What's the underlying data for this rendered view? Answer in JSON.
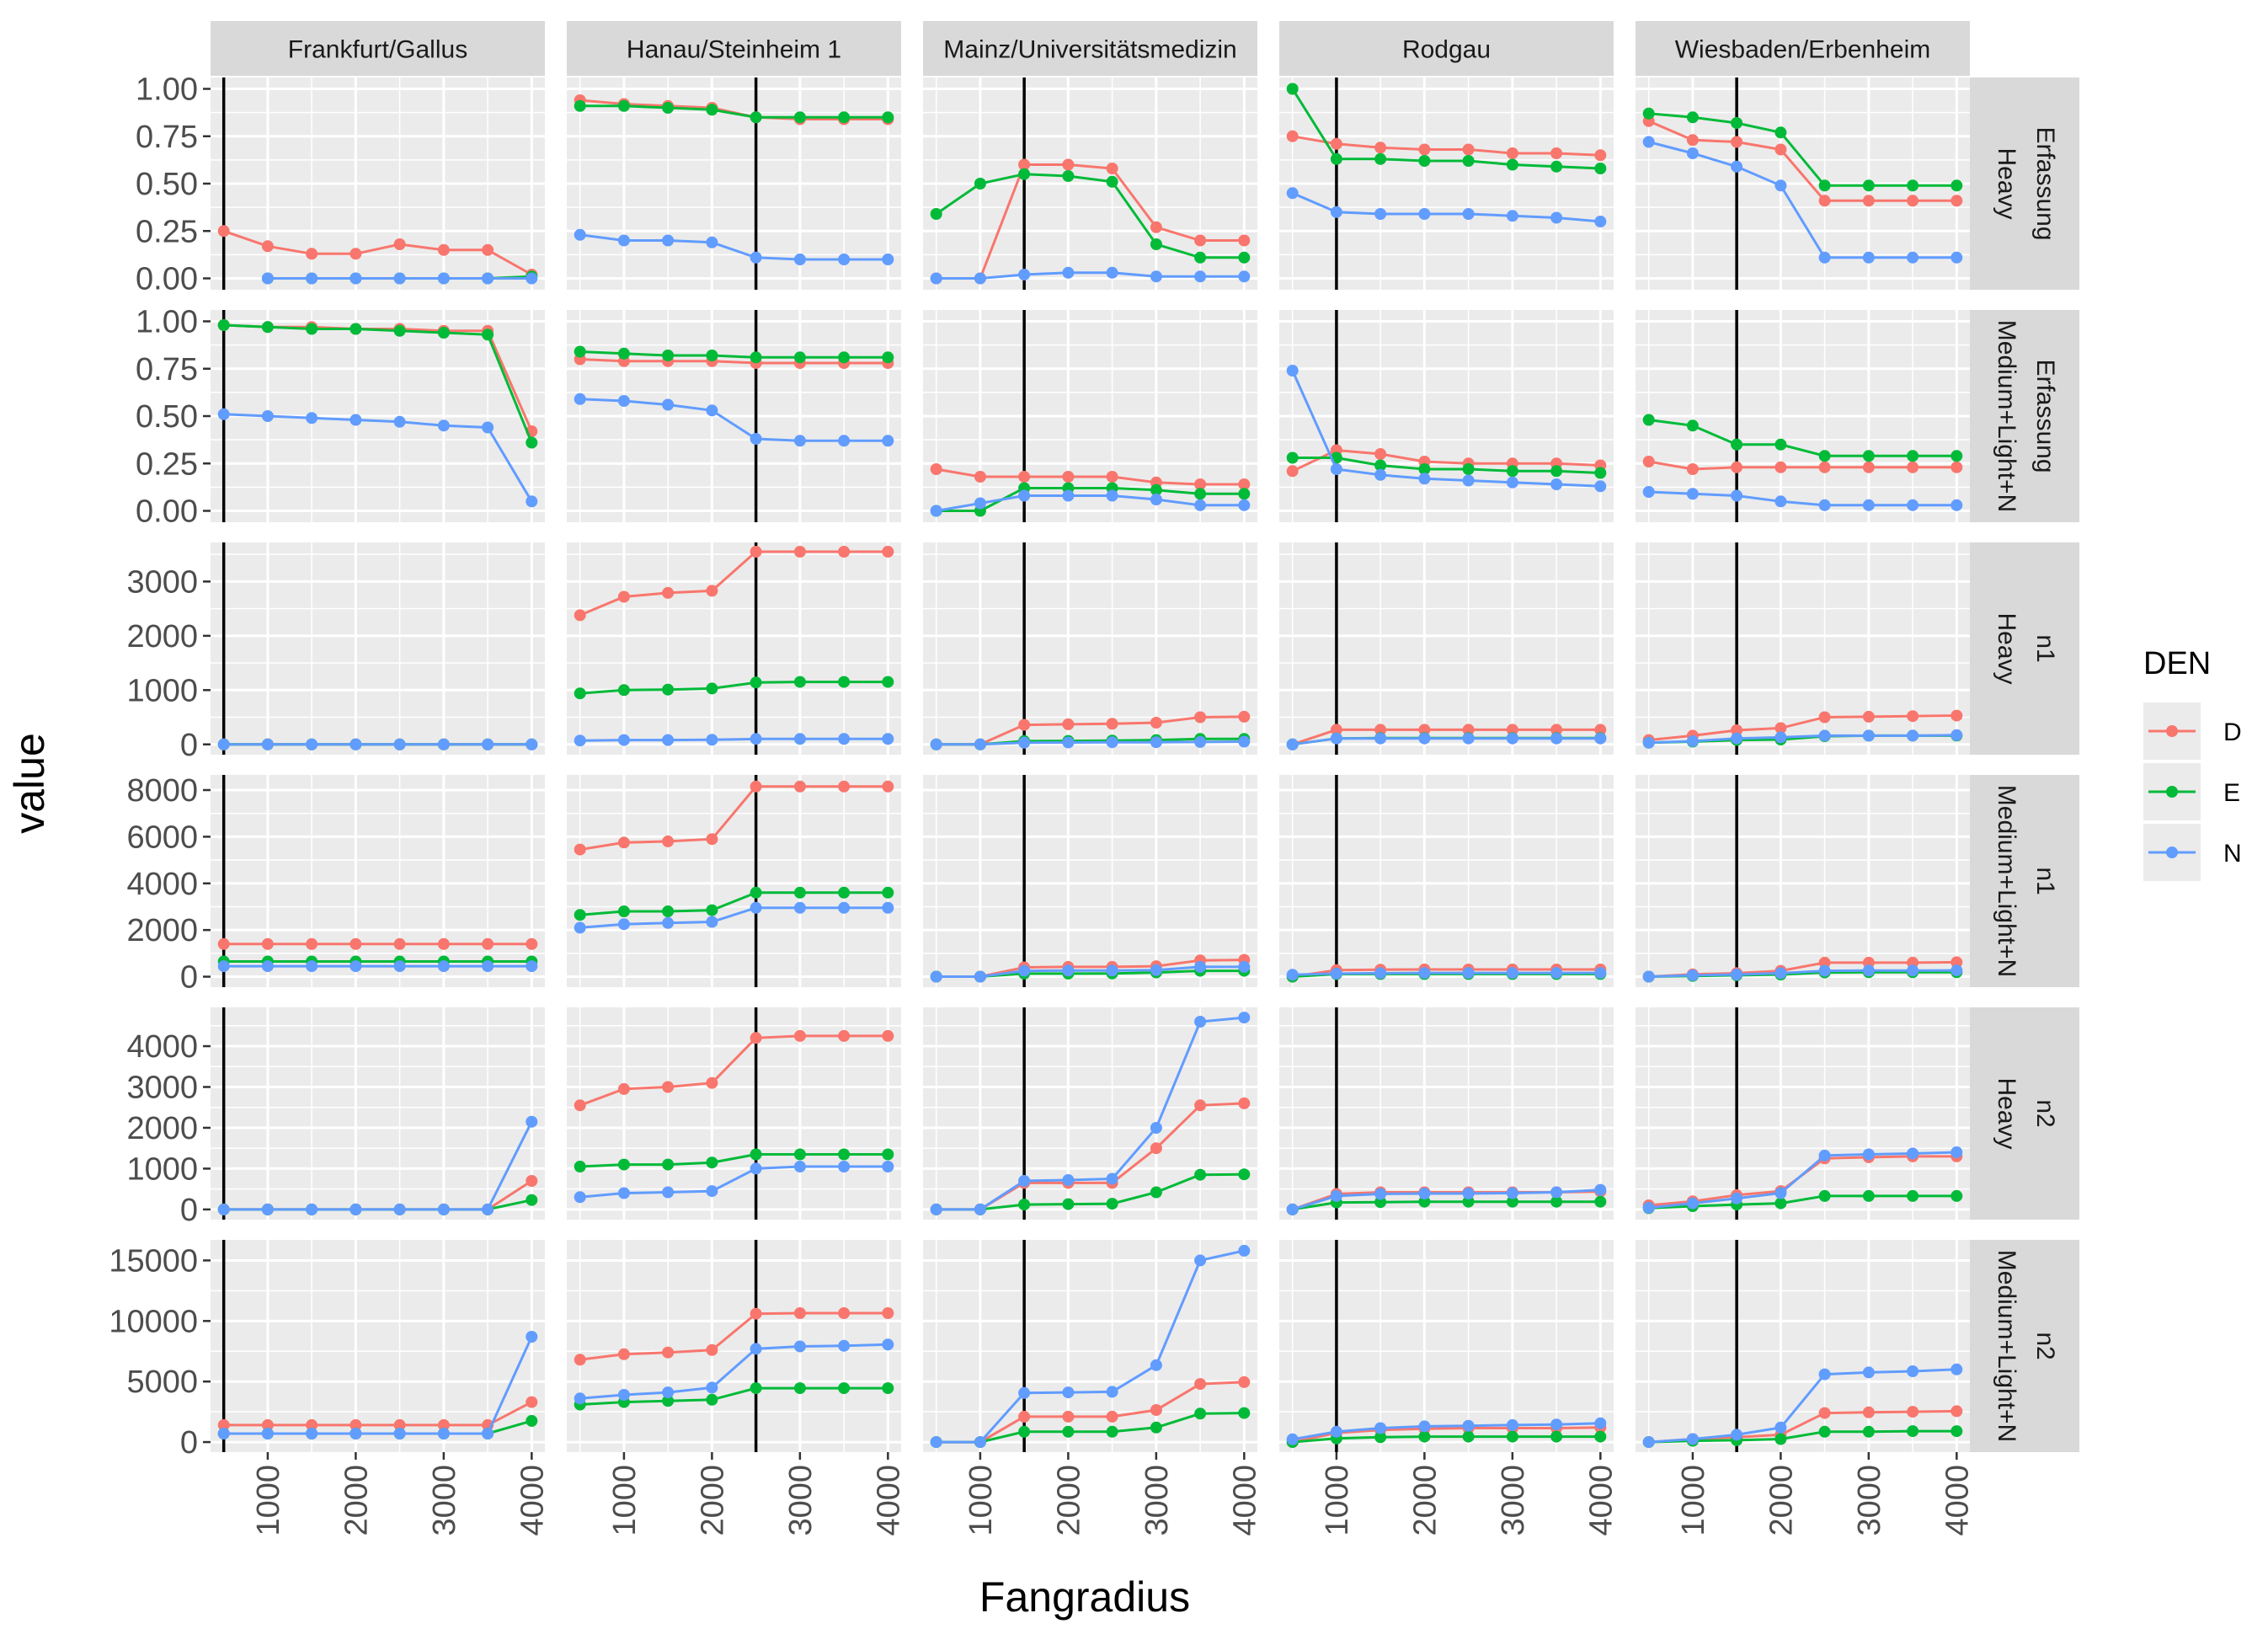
{
  "chart_data": {
    "type": "line",
    "xlabel": "Fangradius",
    "ylabel": "value",
    "x": [
      500,
      1000,
      1500,
      2000,
      2500,
      3000,
      3500,
      4000
    ],
    "xlim": [
      350,
      4150
    ],
    "xticks": [
      1000,
      2000,
      3000,
      4000
    ],
    "tick_labels_x": [
      "1000",
      "2000",
      "3000",
      "4000"
    ],
    "legend": {
      "title": "DEN",
      "position": "right",
      "entries": [
        "D",
        "E",
        "N"
      ]
    },
    "colors": {
      "D": "#F8766D",
      "E": "#00BA38",
      "N": "#619CFF"
    },
    "columns": [
      "Frankfurt/Gallus",
      "Hanau/Steinheim 1",
      "Mainz/Universitätsmedizin",
      "Rodgau",
      "Wiesbaden/Erbenheim"
    ],
    "rows": [
      {
        "label": [
          "Erfassung",
          "Heavy"
        ],
        "ylim": [
          -0.06,
          1.06
        ],
        "yticks": [
          0,
          0.25,
          0.5,
          0.75,
          1
        ],
        "ytick_labels": [
          "0.00",
          "0.25",
          "0.50",
          "0.75",
          "1.00"
        ]
      },
      {
        "label": [
          "Erfassung",
          "Medium+Light+N"
        ],
        "ylim": [
          -0.06,
          1.06
        ],
        "yticks": [
          0,
          0.25,
          0.5,
          0.75,
          1
        ],
        "ytick_labels": [
          "0.00",
          "0.25",
          "0.50",
          "0.75",
          "1.00"
        ]
      },
      {
        "label": [
          "n1",
          "Heavy"
        ],
        "ylim": [
          -190,
          3720
        ],
        "yticks": [
          0,
          1000,
          2000,
          3000
        ],
        "ytick_labels": [
          "0",
          "1000",
          "2000",
          "3000"
        ]
      },
      {
        "label": [
          "n1",
          "Medium+Light+N"
        ],
        "ylim": [
          -450,
          8650
        ],
        "yticks": [
          0,
          2000,
          4000,
          6000,
          8000
        ],
        "ytick_labels": [
          "0",
          "2000",
          "4000",
          "6000",
          "8000"
        ]
      },
      {
        "label": [
          "n2",
          "Heavy"
        ],
        "ylim": [
          -250,
          4950
        ],
        "yticks": [
          0,
          1000,
          2000,
          3000,
          4000
        ],
        "ytick_labels": [
          "0",
          "1000",
          "2000",
          "3000",
          "4000"
        ]
      },
      {
        "label": [
          "n2",
          "Medium+Light+N"
        ],
        "ylim": [
          -830,
          16700
        ],
        "yticks": [
          0,
          5000,
          10000,
          15000
        ],
        "ytick_labels": [
          "0",
          "5000",
          "10000",
          "15000"
        ]
      }
    ],
    "vlines": [
      500,
      2500,
      1500,
      1000,
      1500
    ],
    "panels": [
      [
        {
          "D": [
            0.25,
            0.17,
            0.13,
            0.13,
            0.18,
            0.15,
            0.15,
            0.02
          ],
          "E": [
            null,
            0,
            0,
            0,
            0,
            0,
            0,
            0.01
          ],
          "N": [
            null,
            0,
            0,
            0,
            0,
            0,
            0,
            0
          ]
        },
        {
          "D": [
            0.98,
            0.97,
            0.97,
            0.96,
            0.96,
            0.95,
            0.95,
            0.42
          ],
          "E": [
            0.98,
            0.97,
            0.96,
            0.96,
            0.95,
            0.94,
            0.93,
            0.36
          ],
          "N": [
            0.51,
            0.5,
            0.49,
            0.48,
            0.47,
            0.45,
            0.44,
            0.05
          ]
        },
        {
          "D": [
            0,
            0,
            0,
            0,
            0,
            0,
            0,
            0
          ],
          "E": [
            0,
            0,
            0,
            0,
            0,
            0,
            0,
            0
          ],
          "N": [
            0,
            0,
            0,
            0,
            0,
            0,
            0,
            0
          ]
        },
        {
          "D": [
            1400,
            1400,
            1400,
            1400,
            1400,
            1400,
            1400,
            1400
          ],
          "E": [
            650,
            650,
            650,
            650,
            650,
            650,
            650,
            650
          ],
          "N": [
            450,
            450,
            450,
            450,
            450,
            450,
            450,
            450
          ]
        },
        {
          "D": [
            0,
            0,
            0,
            0,
            0,
            0,
            0,
            700
          ],
          "E": [
            0,
            0,
            0,
            0,
            0,
            0,
            0,
            230
          ],
          "N": [
            0,
            0,
            0,
            0,
            0,
            0,
            0,
            2150
          ]
        },
        {
          "D": [
            1400,
            1400,
            1400,
            1400,
            1400,
            1400,
            1400,
            3300
          ],
          "E": [
            700,
            700,
            700,
            700,
            700,
            700,
            700,
            1750
          ],
          "N": [
            700,
            700,
            700,
            700,
            700,
            700,
            700,
            8700
          ]
        }
      ],
      [
        {
          "D": [
            0.94,
            0.92,
            0.91,
            0.9,
            0.85,
            0.84,
            0.84,
            0.84
          ],
          "E": [
            0.91,
            0.91,
            0.9,
            0.89,
            0.85,
            0.85,
            0.85,
            0.85
          ],
          "N": [
            0.23,
            0.2,
            0.2,
            0.19,
            0.11,
            0.1,
            0.1,
            0.1
          ]
        },
        {
          "D": [
            0.8,
            0.79,
            0.79,
            0.79,
            0.78,
            0.78,
            0.78,
            0.78
          ],
          "E": [
            0.84,
            0.83,
            0.82,
            0.82,
            0.81,
            0.81,
            0.81,
            0.81
          ],
          "N": [
            0.59,
            0.58,
            0.56,
            0.53,
            0.38,
            0.37,
            0.37,
            0.37
          ]
        },
        {
          "D": [
            2380,
            2720,
            2790,
            2830,
            3550,
            3550,
            3550,
            3550
          ],
          "E": [
            940,
            1000,
            1010,
            1030,
            1140,
            1150,
            1150,
            1150
          ],
          "N": [
            70,
            80,
            80,
            85,
            100,
            100,
            100,
            100
          ]
        },
        {
          "D": [
            5450,
            5750,
            5800,
            5900,
            8150,
            8150,
            8150,
            8150
          ],
          "E": [
            2650,
            2800,
            2800,
            2850,
            3600,
            3600,
            3600,
            3600
          ],
          "N": [
            2100,
            2250,
            2300,
            2350,
            2950,
            2950,
            2950,
            2950
          ]
        },
        {
          "D": [
            2550,
            2950,
            3000,
            3100,
            4200,
            4250,
            4250,
            4250
          ],
          "E": [
            1050,
            1100,
            1100,
            1150,
            1350,
            1350,
            1350,
            1350
          ],
          "N": [
            300,
            400,
            420,
            450,
            1000,
            1050,
            1050,
            1050
          ]
        },
        {
          "D": [
            6800,
            7250,
            7400,
            7600,
            10600,
            10650,
            10650,
            10650
          ],
          "E": [
            3100,
            3300,
            3400,
            3500,
            4450,
            4450,
            4450,
            4450
          ],
          "N": [
            3600,
            3900,
            4100,
            4500,
            7700,
            7900,
            7950,
            8050
          ]
        }
      ],
      [
        {
          "D": [
            0,
            0,
            0.6,
            0.6,
            0.58,
            0.27,
            0.2,
            0.2
          ],
          "E": [
            0.34,
            0.5,
            0.55,
            0.54,
            0.51,
            0.18,
            0.11,
            0.11
          ],
          "N": [
            0,
            0,
            0.02,
            0.03,
            0.03,
            0.01,
            0.01,
            0.01
          ]
        },
        {
          "D": [
            0.22,
            0.18,
            0.18,
            0.18,
            0.18,
            0.15,
            0.14,
            0.14
          ],
          "E": [
            0,
            0,
            0.12,
            0.12,
            0.12,
            0.11,
            0.09,
            0.09
          ],
          "N": [
            0,
            0.04,
            0.08,
            0.08,
            0.08,
            0.06,
            0.03,
            0.03
          ]
        },
        {
          "D": [
            0,
            0,
            360,
            370,
            380,
            400,
            500,
            510
          ],
          "E": [
            0,
            0,
            60,
            65,
            70,
            80,
            100,
            100
          ],
          "N": [
            0,
            0,
            30,
            35,
            40,
            40,
            45,
            50
          ]
        },
        {
          "D": [
            0,
            0,
            400,
            420,
            420,
            450,
            700,
            720
          ],
          "E": [
            0,
            0,
            130,
            130,
            140,
            180,
            250,
            250
          ],
          "N": [
            0,
            0,
            250,
            260,
            260,
            280,
            420,
            420
          ]
        },
        {
          "D": [
            0,
            0,
            650,
            650,
            650,
            1500,
            2550,
            2600
          ],
          "E": [
            0,
            0,
            120,
            130,
            140,
            420,
            850,
            860
          ],
          "N": [
            0,
            0,
            700,
            720,
            750,
            2000,
            4600,
            4700
          ]
        },
        {
          "D": [
            0,
            0,
            2100,
            2100,
            2100,
            2650,
            4800,
            4950
          ],
          "E": [
            0,
            0,
            850,
            850,
            850,
            1200,
            2350,
            2400
          ],
          "N": [
            0,
            0,
            4050,
            4100,
            4150,
            6350,
            15000,
            15800
          ]
        }
      ],
      [
        {
          "D": [
            0.75,
            0.71,
            0.69,
            0.68,
            0.68,
            0.66,
            0.66,
            0.65
          ],
          "E": [
            1.0,
            0.63,
            0.63,
            0.62,
            0.62,
            0.6,
            0.59,
            0.58
          ],
          "N": [
            0.45,
            0.35,
            0.34,
            0.34,
            0.34,
            0.33,
            0.32,
            0.3
          ]
        },
        {
          "D": [
            0.21,
            0.32,
            0.3,
            0.26,
            0.25,
            0.25,
            0.25,
            0.24
          ],
          "E": [
            0.28,
            0.28,
            0.24,
            0.22,
            0.22,
            0.21,
            0.21,
            0.2
          ],
          "N": [
            0.74,
            0.22,
            0.19,
            0.17,
            0.16,
            0.15,
            0.14,
            0.13
          ]
        },
        {
          "D": [
            0,
            270,
            270,
            270,
            270,
            270,
            270,
            270
          ],
          "E": [
            0,
            110,
            115,
            115,
            115,
            115,
            115,
            115
          ],
          "N": [
            0,
            110,
            110,
            110,
            110,
            110,
            110,
            110
          ]
        },
        {
          "D": [
            0,
            280,
            300,
            310,
            310,
            310,
            310,
            310
          ],
          "E": [
            0,
            110,
            115,
            115,
            115,
            115,
            115,
            115
          ],
          "N": [
            80,
            130,
            150,
            160,
            160,
            160,
            160,
            160
          ]
        },
        {
          "D": [
            0,
            380,
            420,
            420,
            420,
            420,
            420,
            440
          ],
          "E": [
            0,
            170,
            180,
            190,
            190,
            190,
            190,
            190
          ],
          "N": [
            0,
            330,
            380,
            390,
            390,
            400,
            420,
            480
          ]
        },
        {
          "D": [
            0,
            750,
            1000,
            1100,
            1150,
            1150,
            1150,
            1200
          ],
          "E": [
            0,
            300,
            400,
            450,
            450,
            450,
            450,
            450
          ],
          "N": [
            230,
            850,
            1150,
            1300,
            1350,
            1400,
            1450,
            1550
          ]
        }
      ],
      [
        {
          "D": [
            0.83,
            0.73,
            0.72,
            0.68,
            0.41,
            0.41,
            0.41,
            0.41
          ],
          "E": [
            0.87,
            0.85,
            0.82,
            0.77,
            0.49,
            0.49,
            0.49,
            0.49
          ],
          "N": [
            0.72,
            0.66,
            0.59,
            0.49,
            0.11,
            0.11,
            0.11,
            0.11
          ]
        },
        {
          "D": [
            0.26,
            0.22,
            0.23,
            0.23,
            0.23,
            0.23,
            0.23,
            0.23
          ],
          "E": [
            0.48,
            0.45,
            0.35,
            0.35,
            0.29,
            0.29,
            0.29,
            0.29
          ],
          "N": [
            0.1,
            0.09,
            0.08,
            0.05,
            0.03,
            0.03,
            0.03,
            0.03
          ]
        },
        {
          "D": [
            80,
            160,
            260,
            300,
            500,
            510,
            520,
            530
          ],
          "E": [
            30,
            50,
            80,
            90,
            150,
            160,
            160,
            160
          ],
          "N": [
            30,
            60,
            110,
            130,
            160,
            160,
            160,
            170
          ]
        },
        {
          "D": [
            0,
            100,
            150,
            250,
            600,
            600,
            600,
            620
          ],
          "E": [
            0,
            30,
            60,
            90,
            180,
            190,
            190,
            190
          ],
          "N": [
            0,
            60,
            90,
            150,
            250,
            260,
            260,
            270
          ]
        },
        {
          "D": [
            100,
            200,
            350,
            450,
            1250,
            1280,
            1300,
            1300
          ],
          "E": [
            30,
            80,
            120,
            150,
            330,
            330,
            330,
            330
          ],
          "N": [
            40,
            150,
            270,
            400,
            1320,
            1350,
            1370,
            1400
          ]
        },
        {
          "D": [
            0,
            250,
            400,
            600,
            2400,
            2450,
            2500,
            2550
          ],
          "E": [
            0,
            100,
            150,
            250,
            850,
            850,
            900,
            900
          ],
          "N": [
            0,
            250,
            600,
            1200,
            5600,
            5750,
            5850,
            6000
          ]
        }
      ]
    ]
  }
}
